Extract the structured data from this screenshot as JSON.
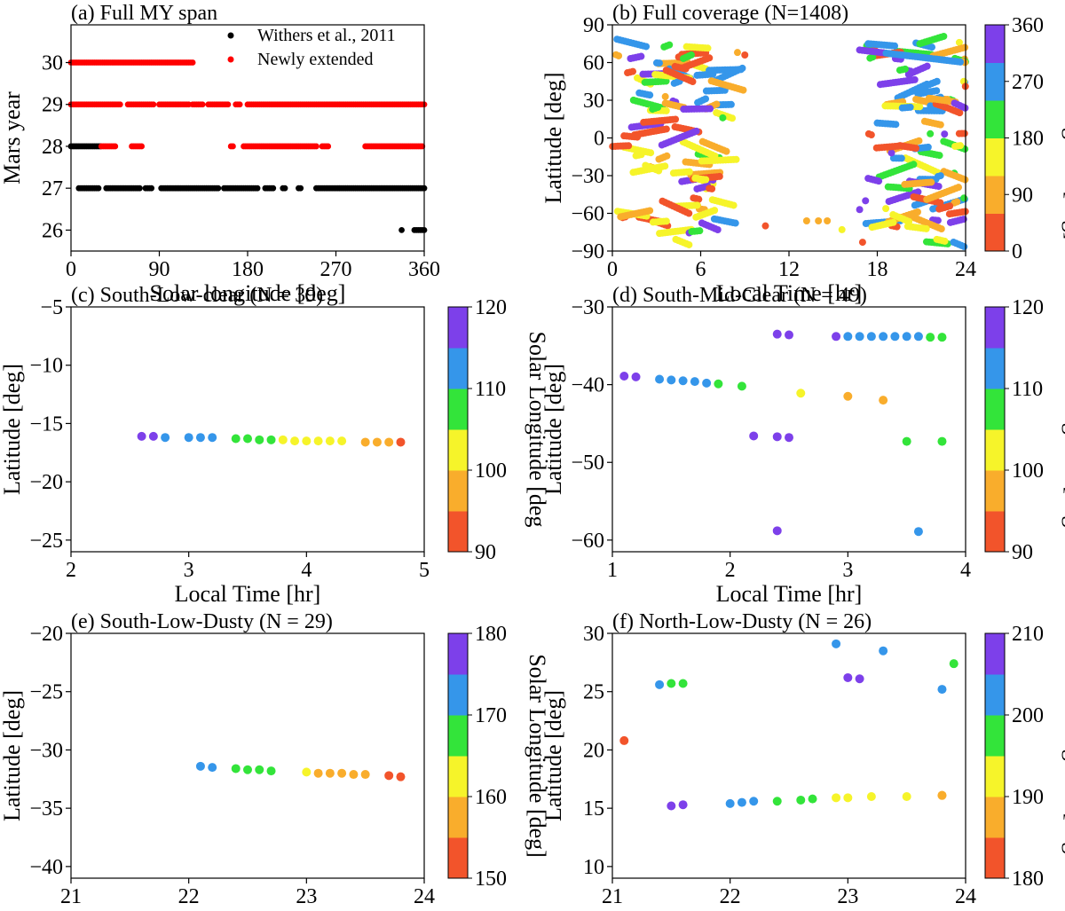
{
  "chart_data": [
    {
      "type": "scatter",
      "title": "(a) Full MY span",
      "xlabel": "Solar longitude [deg]",
      "ylabel": "Mars year",
      "xlim": [
        0,
        360
      ],
      "ylim": [
        25.5,
        30.9
      ],
      "xticks": [
        0,
        90,
        180,
        270,
        360
      ],
      "yticks": [
        26,
        27,
        28,
        29,
        30
      ],
      "grid": false,
      "legend_position": "top-right",
      "series": [
        {
          "name": "Withers et al., 2011",
          "color": "#000000",
          "segments": [
            {
              "y": 27,
              "ranges": [
                [
                  8,
                  28
                ],
                [
                  36,
                  70
                ],
                [
                  76,
                  82
                ],
                [
                  92,
                  150
                ],
                [
                  156,
                  190
                ],
                [
                  198,
                  206
                ],
                [
                  216,
                  218
                ],
                [
                  232,
                  234
                ],
                [
                  250,
                  360
                ]
              ]
            },
            {
              "y": 28,
              "ranges": [
                [
                  0,
                  30
                ]
              ]
            },
            {
              "y": 26,
              "ranges": [
                [
                  337,
                  338
                ],
                [
                  350,
                  360
                ]
              ]
            }
          ]
        },
        {
          "name": "Newly extended",
          "color": "#ff0000",
          "segments": [
            {
              "y": 30,
              "ranges": [
                [
                  0,
                  124
                ]
              ]
            },
            {
              "y": 29,
              "ranges": [
                [
                  0,
                  50
                ],
                [
                  58,
                  84
                ],
                [
                  90,
                  120
                ],
                [
                  124,
                  134
                ],
                [
                  140,
                  160
                ],
                [
                  168,
                  172
                ],
                [
                  180,
                  360
                ]
              ]
            },
            {
              "y": 28,
              "ranges": [
                [
                  31,
                  46
                ],
                [
                  62,
                  72
                ],
                [
                  163,
                  166
                ],
                [
                  176,
                  250
                ],
                [
                  256,
                  262
                ],
                [
                  300,
                  358
                ]
              ]
            }
          ]
        }
      ]
    },
    {
      "type": "scatter",
      "title": "(b) Full coverage (N=1408)",
      "xlabel": "Local Time [hr]",
      "ylabel": "Latitude [deg]",
      "xlim": [
        0,
        24
      ],
      "ylim": [
        -90,
        90
      ],
      "xticks": [
        0,
        6,
        12,
        18,
        24
      ],
      "yticks": [
        -90,
        -60,
        -30,
        0,
        30,
        60,
        90
      ],
      "grid": false,
      "note_points": "dense clusters of tracks at 0-7 hr and 17-24 hr, scattered points near 9 hr and 13-16 hr",
      "notable_points": [
        {
          "x": 8.5,
          "y": 68,
          "c": 90
        },
        {
          "x": 9.0,
          "y": 66,
          "c": 30
        },
        {
          "x": 13.2,
          "y": -66,
          "c": 90
        },
        {
          "x": 14.0,
          "y": -66,
          "c": 90
        },
        {
          "x": 14.6,
          "y": -66,
          "c": 90
        },
        {
          "x": 15.6,
          "y": -73,
          "c": 135
        },
        {
          "x": 16.8,
          "y": -57,
          "c": 315
        },
        {
          "x": 17.2,
          "y": -50,
          "c": 315
        },
        {
          "x": 17.0,
          "y": -83,
          "c": 30
        },
        {
          "x": 7.5,
          "y": 16,
          "c": 225
        },
        {
          "x": 10.4,
          "y": -70,
          "c": 45
        }
      ],
      "colorbar": {
        "label": "Solar Longitude [deg]",
        "min": 0,
        "max": 360,
        "ticks": [
          0,
          90,
          180,
          270,
          360
        ]
      }
    },
    {
      "type": "scatter",
      "title": "(c) South-Low-clear (N = 39)",
      "xlabel": "Local Time [hr]",
      "ylabel": "Latitude [deg]",
      "xlim": [
        2,
        5
      ],
      "ylim": [
        -26,
        -5
      ],
      "xticks": [
        2,
        3,
        4,
        5
      ],
      "yticks": [
        -25,
        -20,
        -15,
        -10,
        -5
      ],
      "grid": false,
      "points": [
        {
          "x": 2.6,
          "y": -16.1,
          "c": 118
        },
        {
          "x": 2.7,
          "y": -16.1,
          "c": 118
        },
        {
          "x": 2.8,
          "y": -16.2,
          "c": 113
        },
        {
          "x": 3.0,
          "y": -16.2,
          "c": 113
        },
        {
          "x": 3.1,
          "y": -16.2,
          "c": 113
        },
        {
          "x": 3.2,
          "y": -16.2,
          "c": 113
        },
        {
          "x": 3.4,
          "y": -16.3,
          "c": 108
        },
        {
          "x": 3.5,
          "y": -16.3,
          "c": 108
        },
        {
          "x": 3.6,
          "y": -16.4,
          "c": 108
        },
        {
          "x": 3.7,
          "y": -16.4,
          "c": 108
        },
        {
          "x": 3.8,
          "y": -16.4,
          "c": 103
        },
        {
          "x": 3.9,
          "y": -16.5,
          "c": 103
        },
        {
          "x": 4.0,
          "y": -16.5,
          "c": 103
        },
        {
          "x": 4.1,
          "y": -16.5,
          "c": 103
        },
        {
          "x": 4.2,
          "y": -16.5,
          "c": 103
        },
        {
          "x": 4.3,
          "y": -16.5,
          "c": 103
        },
        {
          "x": 4.5,
          "y": -16.6,
          "c": 97
        },
        {
          "x": 4.6,
          "y": -16.6,
          "c": 97
        },
        {
          "x": 4.7,
          "y": -16.6,
          "c": 97
        },
        {
          "x": 4.8,
          "y": -16.6,
          "c": 92
        }
      ],
      "colorbar": {
        "label": "Solar Longitude [deg",
        "min": 90,
        "max": 120,
        "ticks": [
          90,
          100,
          110,
          120
        ]
      }
    },
    {
      "type": "scatter",
      "title": "(d) South-Mid-Clear (N = 49)",
      "xlabel": "Local Time [hr]",
      "ylabel": "Latitude [deg]",
      "xlim": [
        1,
        4
      ],
      "ylim": [
        -61.5,
        -30
      ],
      "xticks": [
        1,
        2,
        3,
        4
      ],
      "yticks": [
        -60,
        -50,
        -40,
        -30
      ],
      "grid": false,
      "points": [
        {
          "x": 1.1,
          "y": -38.9,
          "c": 118
        },
        {
          "x": 1.2,
          "y": -39.0,
          "c": 118
        },
        {
          "x": 1.4,
          "y": -39.3,
          "c": 113
        },
        {
          "x": 1.5,
          "y": -39.4,
          "c": 113
        },
        {
          "x": 1.6,
          "y": -39.5,
          "c": 113
        },
        {
          "x": 1.7,
          "y": -39.6,
          "c": 113
        },
        {
          "x": 1.8,
          "y": -39.8,
          "c": 113
        },
        {
          "x": 1.9,
          "y": -39.9,
          "c": 108
        },
        {
          "x": 2.1,
          "y": -40.2,
          "c": 108
        },
        {
          "x": 2.2,
          "y": -46.6,
          "c": 118
        },
        {
          "x": 2.4,
          "y": -33.5,
          "c": 118
        },
        {
          "x": 2.5,
          "y": -33.6,
          "c": 118
        },
        {
          "x": 2.4,
          "y": -46.7,
          "c": 118
        },
        {
          "x": 2.5,
          "y": -46.8,
          "c": 118
        },
        {
          "x": 2.4,
          "y": -58.8,
          "c": 118
        },
        {
          "x": 2.6,
          "y": -41.1,
          "c": 103
        },
        {
          "x": 2.9,
          "y": -33.8,
          "c": 118
        },
        {
          "x": 3.0,
          "y": -33.8,
          "c": 113
        },
        {
          "x": 3.1,
          "y": -33.8,
          "c": 113
        },
        {
          "x": 3.2,
          "y": -33.8,
          "c": 113
        },
        {
          "x": 3.3,
          "y": -33.8,
          "c": 113
        },
        {
          "x": 3.4,
          "y": -33.8,
          "c": 113
        },
        {
          "x": 3.5,
          "y": -33.8,
          "c": 113
        },
        {
          "x": 3.6,
          "y": -33.8,
          "c": 113
        },
        {
          "x": 3.7,
          "y": -33.9,
          "c": 108
        },
        {
          "x": 3.8,
          "y": -33.9,
          "c": 108
        },
        {
          "x": 3.0,
          "y": -41.5,
          "c": 97
        },
        {
          "x": 3.3,
          "y": -42.0,
          "c": 97
        },
        {
          "x": 3.6,
          "y": -58.9,
          "c": 113
        },
        {
          "x": 3.5,
          "y": -47.3,
          "c": 108
        },
        {
          "x": 3.8,
          "y": -47.3,
          "c": 108
        }
      ],
      "colorbar": {
        "label": "Solar Longitude [deg",
        "min": 90,
        "max": 120,
        "ticks": [
          90,
          100,
          110,
          120
        ]
      }
    },
    {
      "type": "scatter",
      "title": "(e) South-Low-Dusty (N = 29)",
      "xlabel": "Local Time [hr]",
      "ylabel": "Latitude [deg]",
      "xlim": [
        21,
        24
      ],
      "ylim": [
        -41,
        -20
      ],
      "xticks": [
        21,
        22,
        23,
        24
      ],
      "yticks": [
        -40,
        -35,
        -30,
        -25,
        -20
      ],
      "grid": false,
      "points": [
        {
          "x": 22.1,
          "y": -31.4,
          "c": 173
        },
        {
          "x": 22.2,
          "y": -31.5,
          "c": 173
        },
        {
          "x": 22.4,
          "y": -31.6,
          "c": 168
        },
        {
          "x": 22.5,
          "y": -31.7,
          "c": 168
        },
        {
          "x": 22.6,
          "y": -31.7,
          "c": 168
        },
        {
          "x": 22.7,
          "y": -31.8,
          "c": 168
        },
        {
          "x": 23.0,
          "y": -31.9,
          "c": 163
        },
        {
          "x": 23.1,
          "y": -32.0,
          "c": 158
        },
        {
          "x": 23.2,
          "y": -32.0,
          "c": 158
        },
        {
          "x": 23.3,
          "y": -32.0,
          "c": 158
        },
        {
          "x": 23.4,
          "y": -32.1,
          "c": 158
        },
        {
          "x": 23.5,
          "y": -32.1,
          "c": 158
        },
        {
          "x": 23.7,
          "y": -32.2,
          "c": 152
        },
        {
          "x": 23.8,
          "y": -32.3,
          "c": 152
        }
      ],
      "colorbar": {
        "label": "Solar Longitude [deg]",
        "min": 150,
        "max": 180,
        "ticks": [
          150,
          160,
          170,
          180
        ]
      }
    },
    {
      "type": "scatter",
      "title": "(f) North-Low-Dusty (N = 26)",
      "xlabel": "Local Time [hr]",
      "ylabel": "Latitude [deg]",
      "xlim": [
        21,
        24
      ],
      "ylim": [
        9,
        30
      ],
      "xticks": [
        21,
        22,
        23,
        24
      ],
      "yticks": [
        10,
        15,
        20,
        25,
        30
      ],
      "grid": false,
      "points": [
        {
          "x": 21.1,
          "y": 20.8,
          "c": 182
        },
        {
          "x": 21.4,
          "y": 25.6,
          "c": 202
        },
        {
          "x": 21.5,
          "y": 25.7,
          "c": 198
        },
        {
          "x": 21.6,
          "y": 25.7,
          "c": 198
        },
        {
          "x": 21.5,
          "y": 15.2,
          "c": 207
        },
        {
          "x": 21.6,
          "y": 15.3,
          "c": 207
        },
        {
          "x": 22.0,
          "y": 15.4,
          "c": 202
        },
        {
          "x": 22.1,
          "y": 15.5,
          "c": 202
        },
        {
          "x": 22.2,
          "y": 15.6,
          "c": 202
        },
        {
          "x": 22.4,
          "y": 15.6,
          "c": 198
        },
        {
          "x": 22.6,
          "y": 15.7,
          "c": 198
        },
        {
          "x": 22.7,
          "y": 15.8,
          "c": 198
        },
        {
          "x": 22.9,
          "y": 15.9,
          "c": 193
        },
        {
          "x": 23.0,
          "y": 15.9,
          "c": 193
        },
        {
          "x": 23.2,
          "y": 16.0,
          "c": 193
        },
        {
          "x": 23.5,
          "y": 16.0,
          "c": 193
        },
        {
          "x": 23.8,
          "y": 16.1,
          "c": 187
        },
        {
          "x": 23.8,
          "y": 16.1,
          "c": 187
        },
        {
          "x": 22.9,
          "y": 29.1,
          "c": 202
        },
        {
          "x": 23.0,
          "y": 26.2,
          "c": 207
        },
        {
          "x": 23.1,
          "y": 26.1,
          "c": 207
        },
        {
          "x": 23.3,
          "y": 28.5,
          "c": 202
        },
        {
          "x": 23.8,
          "y": 25.2,
          "c": 202
        },
        {
          "x": 23.9,
          "y": 27.4,
          "c": 198
        }
      ],
      "colorbar": {
        "label": "Solar Longitude [deg",
        "min": 180,
        "max": 210,
        "ticks": [
          180,
          190,
          200,
          210
        ]
      }
    }
  ],
  "colormap": [
    "#f2542b",
    "#f9ad2c",
    "#f6f42a",
    "#33e43a",
    "#3596ea",
    "#7d40ea"
  ]
}
